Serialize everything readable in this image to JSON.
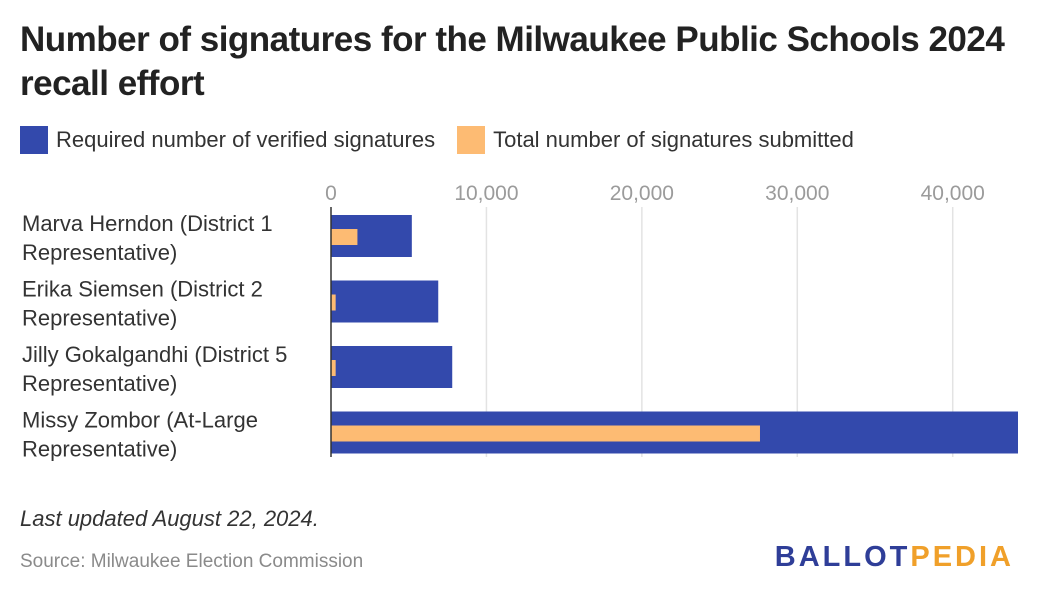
{
  "title": "Number of signatures for the Milwaukee Public Schools 2024 recall effort",
  "note": "Last updated August 22, 2024.",
  "source": "Source: Milwaukee Election Commission",
  "logo": {
    "part1": "BALLOT",
    "part2": "PEDIA"
  },
  "colors": {
    "required": "#3349ac",
    "submitted": "#fdbb73",
    "grid": "#e3e3e3",
    "tick": "#9b9b9b"
  },
  "chart_data": {
    "type": "bar",
    "orientation": "horizontal",
    "categories": [
      [
        "Marva Herndon (District 1",
        "Representative)"
      ],
      [
        "Erika Siemsen (District 2",
        "Representative)"
      ],
      [
        "Jilly Gokalgandhi (District 5",
        "Representative)"
      ],
      [
        "Missy Zombor (At-Large",
        "Representative)"
      ]
    ],
    "series": [
      {
        "name": "Required number of verified signatures",
        "values": [
          5200,
          6900,
          7800,
          44200
        ]
      },
      {
        "name": "Total number of signatures submitted",
        "values": [
          1700,
          300,
          300,
          27600
        ]
      }
    ],
    "x_ticks": [
      0,
      10000,
      20000,
      30000,
      40000
    ],
    "x_tick_labels": [
      "0",
      "10,000",
      "20,000",
      "30,000",
      "40,000"
    ],
    "xlim": [
      0,
      44200
    ],
    "grid": true,
    "legend": "top-left"
  }
}
